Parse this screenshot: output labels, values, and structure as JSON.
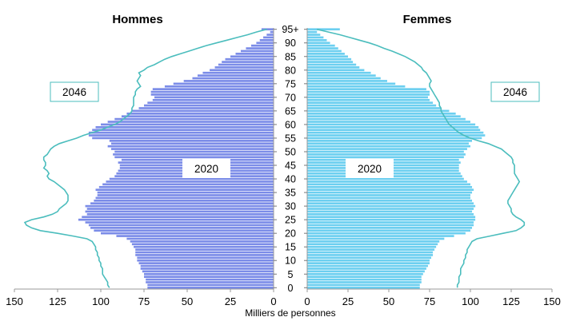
{
  "chart_data": {
    "type": "bar",
    "orientation": "horizontal-pyramid",
    "xlabel": "Milliers de personnes",
    "x_ticks": [
      "150",
      "125",
      "100",
      "75",
      "50",
      "25",
      "0",
      "0",
      "25",
      "50",
      "75",
      "100",
      "125",
      "150"
    ],
    "y_ticks": [
      "0",
      "5",
      "10",
      "15",
      "20",
      "25",
      "30",
      "35",
      "40",
      "45",
      "50",
      "55",
      "60",
      "65",
      "70",
      "75",
      "80",
      "85",
      "90",
      "95+"
    ],
    "xlim": [
      0,
      150
    ],
    "ages": [
      0,
      1,
      2,
      3,
      4,
      5,
      6,
      7,
      8,
      9,
      10,
      11,
      12,
      13,
      14,
      15,
      16,
      17,
      18,
      19,
      20,
      21,
      22,
      23,
      24,
      25,
      26,
      27,
      28,
      29,
      30,
      31,
      32,
      33,
      34,
      35,
      36,
      37,
      38,
      39,
      40,
      41,
      42,
      43,
      44,
      45,
      46,
      47,
      48,
      49,
      50,
      51,
      52,
      53,
      54,
      55,
      56,
      57,
      58,
      59,
      60,
      61,
      62,
      63,
      64,
      65,
      66,
      67,
      68,
      69,
      70,
      71,
      72,
      73,
      74,
      75,
      76,
      77,
      78,
      79,
      80,
      81,
      82,
      83,
      84,
      85,
      86,
      87,
      88,
      89,
      90,
      91,
      92,
      93,
      94,
      95
    ],
    "bar_year": "2020",
    "line_year": "2046",
    "colors": {
      "men": "#7B8CE8",
      "women": "#6CCFF0",
      "line": "#4BBDBD"
    },
    "groups": [
      {
        "name": "Hommes",
        "side": "left",
        "values_2020": [
          73,
          73,
          74,
          74,
          75,
          75,
          76,
          77,
          77,
          78,
          79,
          79,
          80,
          80,
          80,
          81,
          82,
          83,
          85,
          91,
          100,
          104,
          106,
          107,
          109,
          113,
          111,
          108,
          109,
          108,
          109,
          106,
          104,
          103,
          102,
          102,
          103,
          101,
          99,
          97,
          95,
          92,
          91,
          90,
          89,
          89,
          90,
          88,
          92,
          93,
          92,
          94,
          96,
          94,
          95,
          105,
          107,
          107,
          105,
          103,
          100,
          96,
          92,
          88,
          85,
          82,
          78,
          75,
          73,
          70,
          69,
          71,
          71,
          70,
          63,
          58,
          52,
          47,
          44,
          41,
          37,
          34,
          32,
          30,
          28,
          25,
          22,
          19,
          16,
          13,
          10,
          8,
          6,
          4,
          2,
          7
        ],
        "values_2046": [
          95,
          96,
          96,
          97,
          98,
          99,
          99,
          99,
          100,
          100,
          101,
          101,
          102,
          102,
          103,
          103,
          104,
          105,
          108,
          116,
          125,
          135,
          140,
          143,
          144,
          140,
          133,
          128,
          125,
          124,
          122,
          120,
          119,
          119,
          119,
          120,
          121,
          123,
          125,
          127,
          130,
          131,
          130,
          131,
          133,
          132,
          132,
          133,
          133,
          131,
          130,
          129,
          127,
          124,
          119,
          114,
          110,
          105,
          100,
          96,
          92,
          89,
          87,
          85,
          83,
          82,
          82,
          81,
          81,
          81,
          81,
          80,
          80,
          79,
          77,
          78,
          79,
          78,
          77,
          78,
          75,
          73,
          69,
          66,
          63,
          59,
          54,
          49,
          44,
          39,
          33,
          27,
          21,
          15,
          10,
          4
        ]
      },
      {
        "name": "Femmes",
        "side": "right",
        "values_2020": [
          69,
          69,
          70,
          70,
          70,
          71,
          72,
          73,
          74,
          75,
          75,
          76,
          77,
          77,
          78,
          79,
          80,
          81,
          84,
          90,
          97,
          100,
          101,
          102,
          102,
          103,
          103,
          102,
          101,
          102,
          103,
          102,
          101,
          100,
          100,
          101,
          102,
          101,
          100,
          98,
          96,
          95,
          94,
          93,
          93,
          93,
          94,
          93,
          96,
          97,
          96,
          98,
          100,
          99,
          101,
          107,
          109,
          108,
          106,
          105,
          103,
          100,
          97,
          94,
          91,
          87,
          82,
          79,
          77,
          75,
          74,
          75,
          75,
          73,
          60,
          54,
          49,
          45,
          42,
          39,
          35,
          32,
          30,
          28,
          27,
          25,
          23,
          21,
          19,
          17,
          14,
          12,
          10,
          8,
          6,
          20
        ],
        "values_2046": [
          92,
          92,
          93,
          93,
          93,
          94,
          94,
          94,
          95,
          96,
          96,
          97,
          97,
          98,
          98,
          99,
          100,
          101,
          104,
          112,
          120,
          128,
          131,
          133,
          133,
          131,
          128,
          126,
          125,
          125,
          124,
          123,
          123,
          124,
          125,
          126,
          127,
          128,
          129,
          130,
          129,
          128,
          127,
          127,
          127,
          127,
          126,
          126,
          125,
          123,
          121,
          119,
          115,
          111,
          105,
          100,
          96,
          93,
          91,
          89,
          87,
          86,
          85,
          84,
          83,
          82,
          82,
          81,
          81,
          80,
          79,
          78,
          77,
          76,
          75,
          75,
          76,
          75,
          74,
          73,
          71,
          70,
          68,
          66,
          63,
          60,
          56,
          52,
          47,
          43,
          38,
          32,
          26,
          20,
          13,
          6
        ]
      }
    ]
  }
}
